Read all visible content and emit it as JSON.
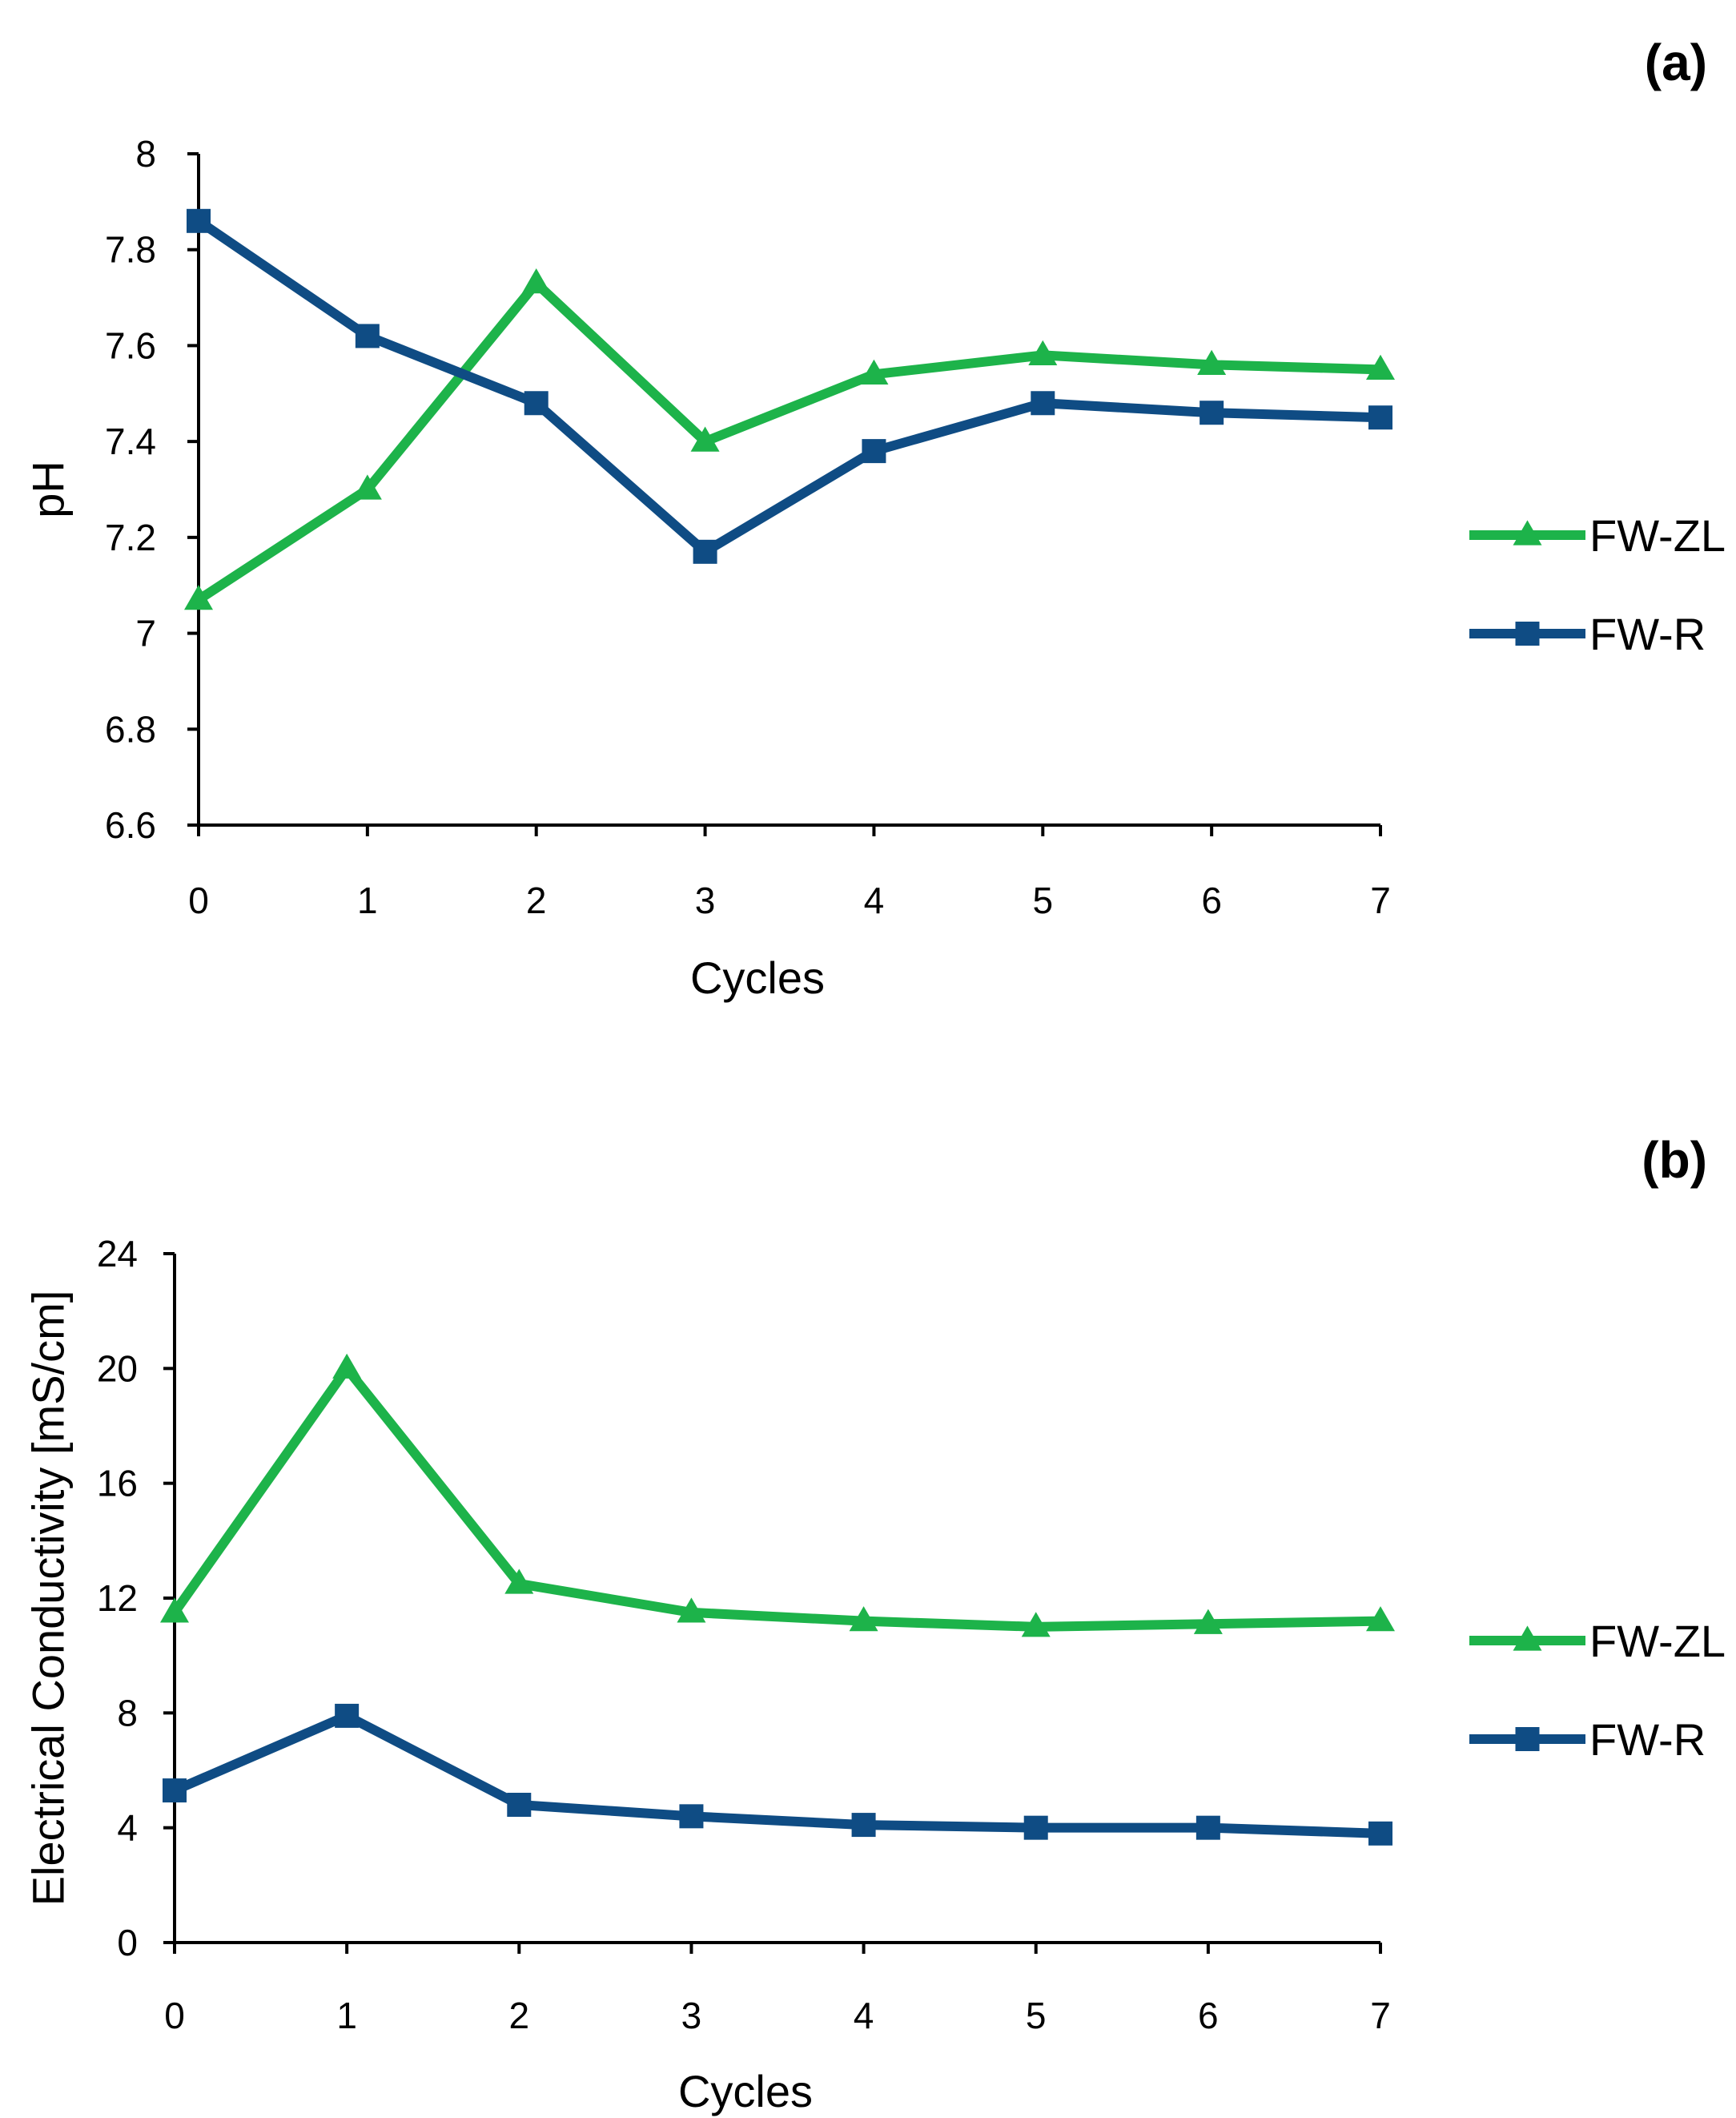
{
  "colors": {
    "fw_zl": "#1db34a",
    "fw_r": "#0f4c84",
    "axis": "#000000"
  },
  "chart_data": [
    {
      "type": "line",
      "panel_label": "(a)",
      "xlabel": "Cycles",
      "ylabel": "pH",
      "x": [
        0,
        1,
        2,
        3,
        4,
        5,
        6,
        7
      ],
      "xticks": [
        "0",
        "1",
        "2",
        "3",
        "4",
        "5",
        "6",
        "7"
      ],
      "ylim": [
        6.6,
        8
      ],
      "yticks": [
        "6.6",
        "6.8",
        "7",
        "7.2",
        "7.4",
        "7.6",
        "7.8",
        "8"
      ],
      "legend_position": "right",
      "grid": false,
      "series": [
        {
          "name": "FW-ZL",
          "marker": "triangle",
          "color": "#1db34a",
          "values": [
            7.07,
            7.3,
            7.73,
            7.4,
            7.54,
            7.58,
            7.56,
            7.55
          ]
        },
        {
          "name": "FW-R",
          "marker": "square",
          "color": "#0f4c84",
          "values": [
            7.86,
            7.62,
            7.48,
            7.17,
            7.38,
            7.48,
            7.46,
            7.45
          ]
        }
      ]
    },
    {
      "type": "line",
      "panel_label": "(b)",
      "xlabel": "Cycles",
      "ylabel": "Electrical Conductivity [mS/cm]",
      "x": [
        0,
        1,
        2,
        3,
        4,
        5,
        6,
        7
      ],
      "xticks": [
        "0",
        "1",
        "2",
        "3",
        "4",
        "5",
        "6",
        "7"
      ],
      "ylim": [
        0,
        24
      ],
      "yticks": [
        "0",
        "4",
        "8",
        "12",
        "16",
        "20",
        "24"
      ],
      "legend_position": "right",
      "grid": false,
      "series": [
        {
          "name": "FW-ZL",
          "marker": "triangle",
          "color": "#1db34a",
          "values": [
            11.5,
            20.0,
            12.5,
            11.5,
            11.2,
            11.0,
            11.1,
            11.2
          ]
        },
        {
          "name": "FW-R",
          "marker": "square",
          "color": "#0f4c84",
          "values": [
            5.3,
            7.9,
            4.8,
            4.4,
            4.1,
            4.0,
            4.0,
            3.8
          ]
        }
      ]
    }
  ]
}
